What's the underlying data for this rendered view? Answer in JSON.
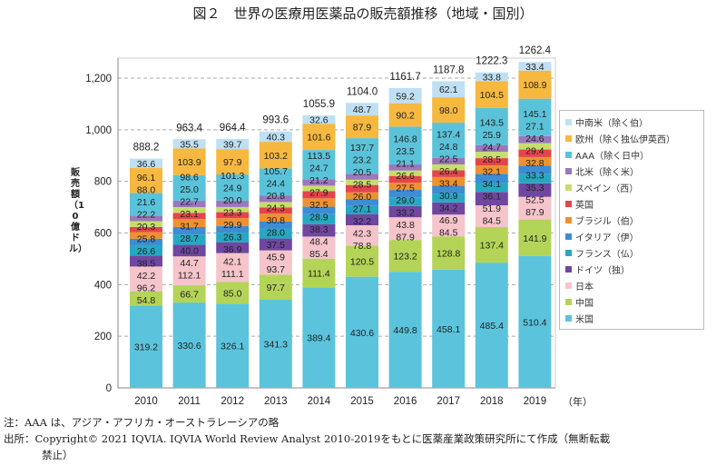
{
  "title": "図２　世界の医療用医薬品の販売額推移（地域・国別）",
  "chart_data": {
    "type": "bar",
    "stacked": true,
    "title": "図２　世界の医療用医薬品の販売額推移（地域・国別）",
    "xlabel": "（年）",
    "ylabel": "販売額（10億ドル）",
    "ylim": [
      0,
      1200
    ],
    "yticks": [
      "0",
      "200",
      "400",
      "600",
      "800",
      "1,000",
      "1,200"
    ],
    "grid": true,
    "legend_position": "right",
    "categories": [
      "2010",
      "2011",
      "2012",
      "2013",
      "2014",
      "2015",
      "2016",
      "2017",
      "2018",
      "2019"
    ],
    "totals": [
      "888.2",
      "963.4",
      "964.4",
      "993.6",
      "1055.9",
      "1104.0",
      "1161.7",
      "1187.8",
      "1222.3",
      "1262.4"
    ],
    "series": [
      {
        "name": "米国",
        "color": "#5bc4dc",
        "values": [
          319.2,
          330.6,
          326.1,
          341.3,
          389.4,
          430.6,
          449.8,
          458.1,
          485.4,
          510.4
        ]
      },
      {
        "name": "中国",
        "color": "#b4d457",
        "values": [
          54.8,
          66.7,
          85.0,
          97.7,
          111.4,
          120.5,
          123.2,
          128.8,
          137.4,
          141.9
        ]
      },
      {
        "name": "日本",
        "color": "#f6c4cb",
        "values": [
          96.2,
          112.1,
          111.1,
          93.7,
          85.4,
          78.8,
          87.9,
          84.5,
          84.5,
          87.9
        ]
      },
      {
        "name": "ドイツ（独）",
        "color": "#6f47a0",
        "values": [
          42.2,
          44.7,
          42.1,
          45.9,
          48.4,
          42.3,
          43.8,
          46.9,
          51.9,
          52.5
        ]
      },
      {
        "name": "フランス（仏）",
        "color": "#27a8c2",
        "values": [
          38.5,
          40.0,
          36.9,
          37.5,
          38.3,
          32.2,
          33.2,
          34.2,
          36.1,
          35.3
        ]
      },
      {
        "name": "イタリア（伊）",
        "color": "#3d8dd5",
        "values": [
          26.6,
          28.7,
          26.3,
          28.0,
          28.9,
          27.1,
          29.0,
          30.9,
          34.1,
          33.3
        ]
      },
      {
        "name": "ブラジル（伯）",
        "color": "#ef912e",
        "values": [
          25.8,
          31.7,
          29.9,
          30.8,
          32.5,
          26.0,
          27.5,
          33.4,
          32.1,
          32.8
        ]
      },
      {
        "name": "英国",
        "color": "#e4454b",
        "values": [
          20.3,
          23.1,
          23.3,
          24.3,
          27.9,
          28.5,
          26.6,
          26.4,
          28.5,
          29.4
        ]
      },
      {
        "name": "スペイン（西）",
        "color": "#c6df6a",
        "values": [
          22.2,
          22.7,
          20.0,
          20.8,
          21.2,
          20.5,
          21.1,
          22.5,
          24.7,
          24.6
        ]
      },
      {
        "name": "北米（除く米）",
        "color": "#9a78bd",
        "values": [
          21.6,
          25.0,
          24.9,
          24.4,
          24.7,
          23.2,
          23.5,
          24.8,
          25.9,
          27.1
        ]
      },
      {
        "name": "AAA（除く日中）",
        "color": "#5ac3d9",
        "values": [
          88.0,
          98.6,
          101.3,
          105.7,
          113.5,
          137.7,
          146.8,
          137.4,
          143.5,
          145.1
        ]
      },
      {
        "name": "欧州（除く独仏伊英西）",
        "color": "#f6b83f",
        "values": [
          96.1,
          103.9,
          97.9,
          103.2,
          101.6,
          87.9,
          90.2,
          98.0,
          104.5,
          108.9
        ]
      },
      {
        "name": "中南米（除く伯）",
        "color": "#bfe0f3",
        "values": [
          36.6,
          35.5,
          39.7,
          40.3,
          32.6,
          48.7,
          59.2,
          62.1,
          33.8,
          33.4
        ]
      }
    ]
  },
  "notes": {
    "note1": "注：AAA は、アジア・アフリカ・オーストラレーシアの略",
    "note2": "出所：Copyright© 2021 IQVIA. IQVIA World Review Analyst 2010-2019をもとに医薬産業政策研究所にて作成（無断転載",
    "note3": "禁止）"
  }
}
